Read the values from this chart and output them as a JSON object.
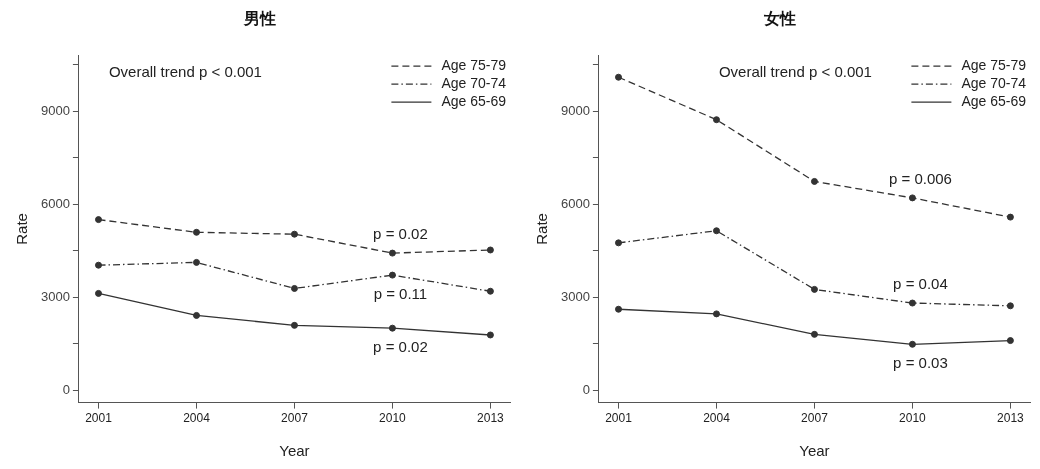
{
  "chart_data": [
    {
      "type": "line",
      "title": "男性",
      "xlabel": "Year",
      "ylabel": "Rate",
      "x": [
        2001,
        2004,
        2007,
        2010,
        2013
      ],
      "series": [
        {
          "name": "Age 75-79",
          "color": "#333333",
          "line_style": "dashed",
          "values": [
            5500,
            5090,
            5030,
            4420,
            4520
          ]
        },
        {
          "name": "Age 70-74",
          "color": "#333333",
          "line_style": "dashdot",
          "values": [
            4030,
            4120,
            3280,
            3710,
            3190
          ]
        },
        {
          "name": "Age 65-69",
          "color": "#333333",
          "line_style": "solid",
          "values": [
            3120,
            2410,
            2090,
            2000,
            1780
          ]
        }
      ],
      "xlim": [
        2000.4,
        2013.6
      ],
      "xticks": [
        2001,
        2004,
        2007,
        2010,
        2013
      ],
      "ylim": [
        -400,
        10800
      ],
      "yticks": [
        0,
        {
          "value": 1500,
          "label": null
        },
        3000,
        {
          "value": 4500,
          "label": null
        },
        6000,
        {
          "value": 7500,
          "label": null
        },
        9000,
        {
          "value": 10500,
          "label": null
        }
      ],
      "marker": "circle",
      "grid": false,
      "legend": "top right",
      "annotations": [
        "Overall trend p < 0.001",
        "p = 0.02",
        "p = 0.11",
        "p = 0.02"
      ]
    },
    {
      "type": "line",
      "title": "女性",
      "xlabel": "Year",
      "ylabel": "Rate",
      "x": [
        2001,
        2004,
        2007,
        2010,
        2013
      ],
      "series": [
        {
          "name": "Age 75-79",
          "color": "#333333",
          "line_style": "dashed",
          "values": [
            10090,
            8720,
            6730,
            6200,
            5580
          ]
        },
        {
          "name": "Age 70-74",
          "color": "#333333",
          "line_style": "dashdot",
          "values": [
            4750,
            5140,
            3250,
            2810,
            2720
          ]
        },
        {
          "name": "Age 65-69",
          "color": "#333333",
          "line_style": "solid",
          "values": [
            2610,
            2460,
            1800,
            1480,
            1600
          ]
        }
      ],
      "xlim": [
        2000.4,
        2013.6
      ],
      "xticks": [
        2001,
        2004,
        2007,
        2010,
        2013
      ],
      "ylim": [
        -400,
        10800
      ],
      "yticks": [
        0,
        {
          "value": 1500,
          "label": null
        },
        3000,
        {
          "value": 4500,
          "label": null
        },
        6000,
        {
          "value": 7500,
          "label": null
        },
        9000,
        {
          "value": 10500,
          "label": null
        }
      ],
      "marker": "circle",
      "grid": false,
      "legend": "top right",
      "annotations": [
        "Overall trend p < 0.001",
        "p = 0.006",
        "p = 0.04",
        "p = 0.03"
      ]
    }
  ]
}
